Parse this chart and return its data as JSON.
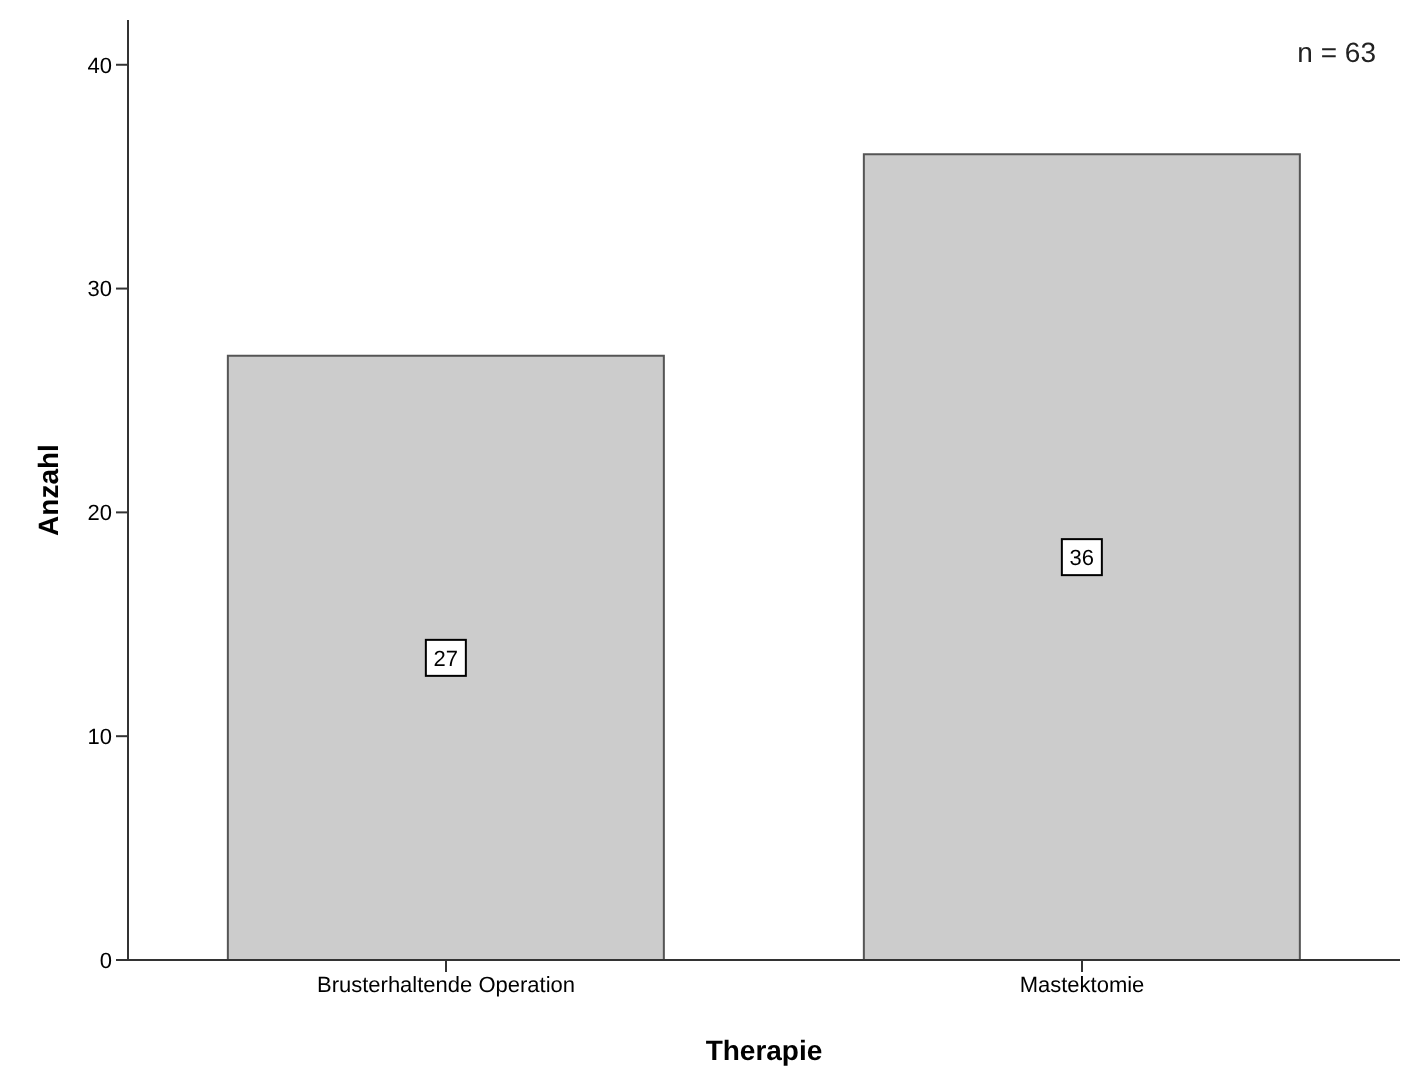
{
  "chart_data": {
    "type": "bar",
    "xlabel": "Therapie",
    "ylabel": "Anzahl",
    "categories": [
      "Brusterhaltende Operation",
      "Mastektomie"
    ],
    "values": [
      27,
      36
    ],
    "color": "#cccccc",
    "ylim": [
      0,
      42
    ],
    "yticks": [
      0,
      10,
      20,
      30,
      40
    ],
    "data_labels": true,
    "annotations": [
      "n = 63"
    ]
  }
}
